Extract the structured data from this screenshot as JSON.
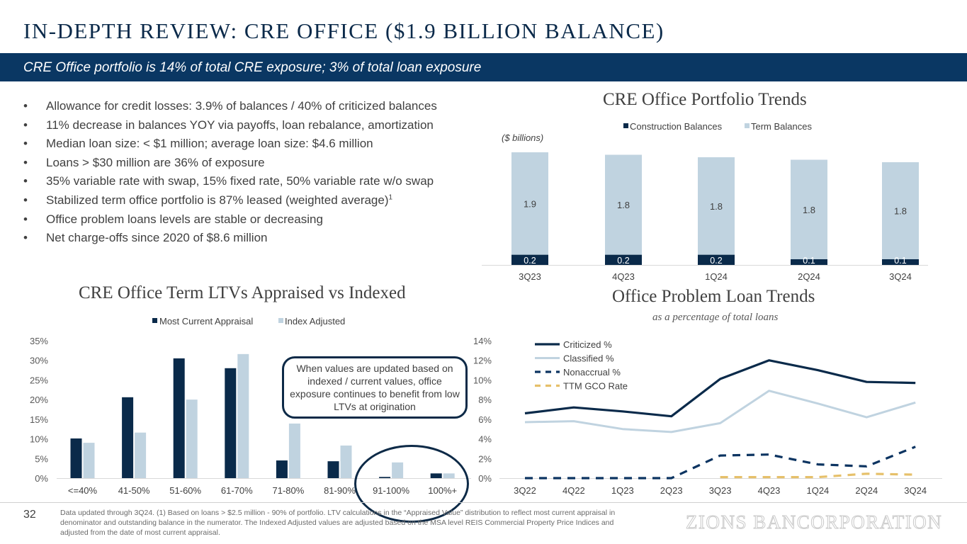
{
  "header": {
    "title": "IN-DEPTH REVIEW: CRE OFFICE ($1.9 BILLION BALANCE)",
    "banner": "CRE Office portfolio is 14% of total CRE exposure; 3% of total loan exposure"
  },
  "bullets": [
    "Allowance for credit losses: 3.9% of balances / 40% of criticized balances",
    "11% decrease in balances YOY via payoffs, loan rebalance, amortization",
    "Median loan size: < $1 million; average loan size: $4.6 million",
    "Loans > $30 million are 36% of exposure",
    "35% variable rate with swap, 15% fixed rate, 50% variable rate w/o swap",
    "Stabilized term office portfolio is 87% leased (weighted average)",
    "Office problem loans levels are stable or decreasing",
    "Net charge-offs since 2020 of $8.6 million"
  ],
  "bullet_footnote_marker": "1",
  "callout": "When values are updated based on indexed / current values, office exposure continues to benefit from low LTVs at origination",
  "footer": {
    "page_number": "32",
    "footnote": "Data updated through 3Q24. (1) Based on loans > $2.5 million - 90% of portfolio. LTV calculations in the “Appraised Value” distribution to reflect most current appraisal in denominator and outstanding balance in the numerator. The Indexed Adjusted values are adjusted based on the MSA level REIS Commercial Property Price Indices and adjusted from the date of most current appraisal.",
    "logo": "ZIONS BANCORPORATION"
  },
  "colors": {
    "navy": "#0a2a4a",
    "light_blue": "#c0d3e0",
    "gold": "#e6c06a",
    "banner": "#0a3763"
  },
  "chart_data": [
    {
      "type": "bar",
      "stacked": true,
      "title": "CRE Office Portfolio Trends",
      "unit_note": "($ billions)",
      "categories": [
        "3Q23",
        "4Q23",
        "1Q24",
        "2Q24",
        "3Q24"
      ],
      "series": [
        {
          "name": "Construction Balances",
          "values": [
            0.2,
            0.2,
            0.2,
            0.1,
            0.1
          ],
          "labels": [
            "0.2",
            "0.2",
            "0.2",
            "0.1",
            "0.1"
          ]
        },
        {
          "name": "Term Balances",
          "values": [
            1.9,
            1.8,
            1.8,
            1.8,
            1.8
          ],
          "labels": [
            "1.9",
            "1.8",
            "1.8",
            "1.8",
            "1.8"
          ]
        }
      ],
      "legend": "top",
      "grid": false
    },
    {
      "type": "bar",
      "title": "CRE Office Term LTVs Appraised vs Indexed",
      "categories": [
        "<=40%",
        "41-50%",
        "51-60%",
        "61-70%",
        "71-80%",
        "81-90%",
        "91-100%",
        "100%+"
      ],
      "series": [
        {
          "name": "Most Current Appraisal",
          "values": [
            10.1,
            20.6,
            30.5,
            28.0,
            4.5,
            4.3,
            0.3,
            1.2
          ]
        },
        {
          "name": "Index Adjusted",
          "values": [
            9.0,
            11.6,
            20.0,
            31.6,
            13.9,
            8.3,
            4.0,
            1.2
          ]
        }
      ],
      "yticks": [
        "0%",
        "5%",
        "10%",
        "15%",
        "20%",
        "25%",
        "30%",
        "35%"
      ],
      "ylim": [
        0,
        35
      ],
      "legend": "top",
      "grid": false
    },
    {
      "type": "line",
      "title": "Office Problem Loan Trends",
      "subtitle": "as a percentage of total loans",
      "categories": [
        "3Q22",
        "4Q22",
        "1Q23",
        "2Q23",
        "3Q23",
        "4Q23",
        "1Q24",
        "2Q24",
        "3Q24"
      ],
      "series": [
        {
          "name": "Criticized %",
          "values": [
            6.6,
            7.2,
            6.8,
            6.3,
            10.1,
            12.0,
            11.0,
            9.8,
            9.7
          ],
          "style": "solid-dark"
        },
        {
          "name": "Classified %",
          "values": [
            5.7,
            5.8,
            5.0,
            4.7,
            5.6,
            8.9,
            7.6,
            6.2,
            7.7
          ],
          "style": "solid-light"
        },
        {
          "name": "Nonaccrual %",
          "values": [
            0.0,
            0.0,
            0.0,
            0.0,
            2.3,
            2.4,
            1.4,
            1.2,
            3.2
          ],
          "style": "dashed-dark"
        },
        {
          "name": "TTM GCO Rate",
          "values": [
            null,
            null,
            null,
            null,
            0.1,
            0.1,
            0.1,
            0.45,
            0.35
          ],
          "style": "dashed-gold"
        }
      ],
      "yticks": [
        "0%",
        "2%",
        "4%",
        "6%",
        "8%",
        "10%",
        "12%",
        "14%"
      ],
      "ylim": [
        0,
        14
      ],
      "legend": "top-left",
      "grid": false
    }
  ]
}
